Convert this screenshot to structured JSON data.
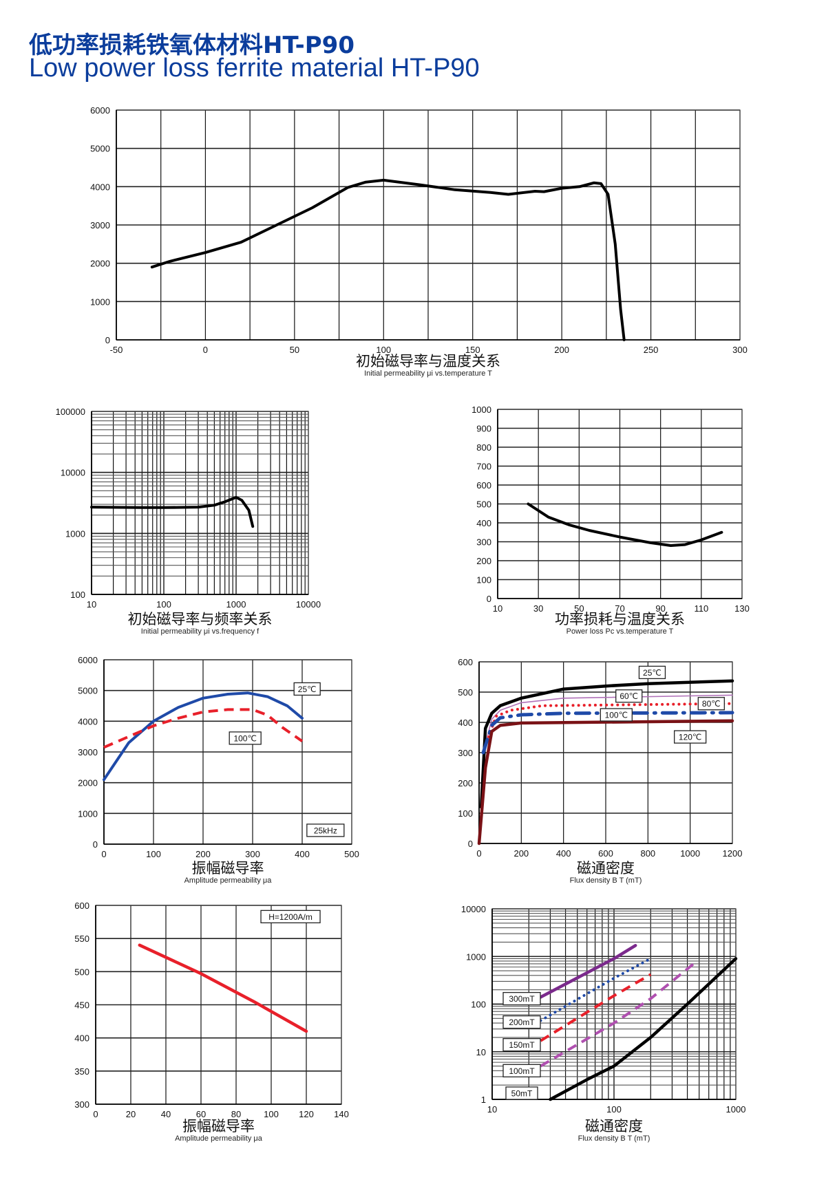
{
  "header": {
    "title_cn": "低功率损耗铁氧体材料HT-P90",
    "title_en": "Low power loss ferrite material HT-P90",
    "accent_color": "#0b3d9c"
  },
  "chart_data": [
    {
      "id": "mu-vs-temp",
      "type": "line",
      "xscale": "linear",
      "yscale": "linear",
      "xlim": [
        -50,
        300
      ],
      "ylim": [
        0,
        6000
      ],
      "xticks": [
        -50,
        0,
        50,
        100,
        150,
        200,
        250,
        300
      ],
      "yticks": [
        0,
        1000,
        2000,
        3000,
        4000,
        5000,
        6000
      ],
      "xgrid": [
        -25,
        0,
        25,
        50,
        75,
        100,
        125,
        150,
        175,
        200,
        225,
        250,
        275,
        300
      ],
      "ygrid": [
        1000,
        2000,
        3000,
        4000,
        5000,
        6000
      ],
      "title": "初始磁导率与温度关系",
      "subtitle": "Initial permeability μi vs.temperature T",
      "series": [
        {
          "name": "μi",
          "color": "#000000",
          "style": "solid",
          "x": [
            -30,
            -20,
            0,
            20,
            40,
            60,
            80,
            90,
            100,
            120,
            140,
            160,
            170,
            185,
            190,
            200,
            210,
            218,
            222,
            226,
            230,
            233,
            235
          ],
          "y": [
            1900,
            2050,
            2280,
            2550,
            3000,
            3450,
            3980,
            4120,
            4170,
            4050,
            3920,
            3850,
            3800,
            3880,
            3870,
            3960,
            4000,
            4100,
            4080,
            3800,
            2500,
            800,
            0
          ]
        }
      ],
      "labels": []
    },
    {
      "id": "mu-vs-freq",
      "type": "line",
      "xscale": "log",
      "yscale": "log",
      "xlim": [
        10,
        10000
      ],
      "ylim": [
        100,
        100000
      ],
      "xticks": [
        10,
        100,
        1000,
        10000
      ],
      "yticks": [
        100,
        1000,
        10000,
        100000
      ],
      "title": "初始磁导率与频率关系",
      "subtitle": "Initial permeability μi vs.frequency f",
      "series": [
        {
          "name": "μi",
          "color": "#000000",
          "style": "solid",
          "x": [
            10,
            50,
            100,
            300,
            500,
            700,
            1000,
            1200,
            1500,
            1700
          ],
          "y": [
            2700,
            2650,
            2650,
            2700,
            2900,
            3300,
            3900,
            3500,
            2400,
            1300
          ]
        }
      ],
      "labels": []
    },
    {
      "id": "pc-vs-temp",
      "type": "line",
      "xscale": "linear",
      "yscale": "linear",
      "xlim": [
        10,
        130
      ],
      "ylim": [
        0,
        1000
      ],
      "xticks": [
        10,
        30,
        50,
        70,
        90,
        110,
        130
      ],
      "yticks": [
        0,
        100,
        200,
        300,
        400,
        500,
        600,
        700,
        800,
        900,
        1000
      ],
      "xgrid": [
        30,
        50,
        70,
        90,
        110,
        130
      ],
      "ygrid": [
        100,
        200,
        300,
        400,
        500,
        600,
        700,
        800,
        900,
        1000
      ],
      "title": "功率损耗与温度关系",
      "subtitle": "Power loss Pc vs.temperature T",
      "series": [
        {
          "name": "Pc",
          "color": "#000000",
          "style": "solid",
          "x": [
            25,
            35,
            45,
            55,
            70,
            85,
            95,
            102,
            110,
            120
          ],
          "y": [
            500,
            430,
            390,
            360,
            325,
            295,
            280,
            285,
            310,
            350
          ]
        }
      ],
      "labels": []
    },
    {
      "id": "mua-vs-flux",
      "type": "line",
      "xscale": "linear",
      "yscale": "linear",
      "xlim": [
        0,
        500
      ],
      "ylim": [
        0,
        6000
      ],
      "xticks": [
        0,
        100,
        200,
        300,
        400,
        500
      ],
      "yticks": [
        0,
        1000,
        2000,
        3000,
        4000,
        5000,
        6000
      ],
      "xgrid": [
        100,
        200,
        300,
        400,
        500
      ],
      "ygrid": [
        1000,
        2000,
        3000,
        4000,
        5000,
        6000
      ],
      "title": "振幅磁导率",
      "subtitle": "Amplitude permeability μa",
      "series": [
        {
          "name": "25℃",
          "color": "#1f4aa8",
          "style": "solid",
          "x": [
            0,
            50,
            100,
            150,
            200,
            250,
            290,
            330,
            370,
            400
          ],
          "y": [
            2100,
            3300,
            4000,
            4450,
            4750,
            4880,
            4920,
            4800,
            4500,
            4100
          ]
        },
        {
          "name": "100℃",
          "color": "#e8202a",
          "style": "dashed",
          "x": [
            0,
            50,
            100,
            150,
            200,
            250,
            300,
            330,
            360,
            400
          ],
          "y": [
            3150,
            3500,
            3850,
            4100,
            4300,
            4380,
            4380,
            4200,
            3800,
            3350
          ]
        }
      ],
      "labels": [
        {
          "text": "25℃",
          "x": 410,
          "y": 5050
        },
        {
          "text": "100℃",
          "x": 285,
          "y": 3450
        },
        {
          "text": "25kHz",
          "x": 447,
          "y": 450
        }
      ]
    },
    {
      "id": "mua-vs-b",
      "type": "line",
      "xscale": "linear",
      "yscale": "linear",
      "xlim": [
        0,
        1200
      ],
      "ylim": [
        0,
        600
      ],
      "xticks": [
        0,
        200,
        400,
        600,
        800,
        1000,
        1200
      ],
      "yticks": [
        0,
        100,
        200,
        300,
        400,
        500,
        600
      ],
      "xgrid": [
        200,
        400,
        600,
        800,
        1000,
        1200
      ],
      "ygrid": [
        100,
        200,
        300,
        400,
        500,
        600
      ],
      "title": "磁通密度",
      "subtitle": "Flux density B T (mT)",
      "series": [
        {
          "name": "25℃",
          "color": "#000000",
          "style": "solid-thick",
          "x": [
            10,
            30,
            60,
            100,
            200,
            400,
            600,
            800,
            1200
          ],
          "y": [
            120,
            380,
            430,
            455,
            480,
            510,
            520,
            528,
            537
          ]
        },
        {
          "name": "60℃",
          "color": "#b070b8",
          "style": "thin",
          "x": [
            20,
            60,
            100,
            200,
            400,
            1200
          ],
          "y": [
            300,
            410,
            440,
            465,
            480,
            490
          ]
        },
        {
          "name": "80℃",
          "color": "#e8202a",
          "style": "dotted",
          "x": [
            20,
            80,
            150,
            300,
            1200
          ],
          "y": [
            300,
            420,
            440,
            455,
            462
          ]
        },
        {
          "name": "100℃",
          "color": "#1f4aa8",
          "style": "dashdot",
          "x": [
            20,
            60,
            100,
            200,
            400,
            1200
          ],
          "y": [
            300,
            390,
            415,
            425,
            430,
            432
          ]
        },
        {
          "name": "120℃",
          "color": "#7a1216",
          "style": "solid-thick",
          "x": [
            0,
            30,
            60,
            100,
            200,
            1200
          ],
          "y": [
            0,
            250,
            370,
            390,
            398,
            405
          ]
        }
      ],
      "labels": [
        {
          "text": "25℃",
          "x": 820,
          "y": 565
        },
        {
          "text": "60℃",
          "x": 710,
          "y": 487
        },
        {
          "text": "80℃",
          "x": 1100,
          "y": 462
        },
        {
          "text": "100℃",
          "x": 650,
          "y": 425
        },
        {
          "text": "120℃",
          "x": 1000,
          "y": 352
        }
      ]
    },
    {
      "id": "mua-vs-temp",
      "type": "line",
      "xscale": "linear",
      "yscale": "linear",
      "xlim": [
        0,
        140
      ],
      "ylim": [
        300,
        600
      ],
      "xticks": [
        0,
        20,
        40,
        60,
        80,
        100,
        120,
        140
      ],
      "yticks": [
        300,
        350,
        400,
        450,
        500,
        550,
        600
      ],
      "xgrid": [
        20,
        40,
        60,
        80,
        100,
        120,
        140
      ],
      "ygrid": [
        350,
        400,
        450,
        500,
        550,
        600
      ],
      "title": "振幅磁导率",
      "subtitle": "Amplitude permeability μa",
      "series": [
        {
          "name": "μa",
          "color": "#e8202a",
          "style": "solid-thick",
          "x": [
            25,
            60,
            90,
            120
          ],
          "y": [
            540,
            497,
            455,
            410
          ]
        }
      ],
      "labels": [
        {
          "text": "H=1200A/m",
          "x": 111,
          "y": 583
        }
      ]
    },
    {
      "id": "pc-vs-b",
      "type": "line",
      "xscale": "log",
      "yscale": "log",
      "xlim": [
        10,
        1000
      ],
      "ylim": [
        1,
        10000
      ],
      "xticks": [
        10,
        100,
        1000
      ],
      "yticks": [
        1,
        10,
        100,
        1000,
        10000
      ],
      "title": "磁通密度",
      "subtitle": "Flux density B T (mT)",
      "series": [
        {
          "name": "300mT",
          "color": "#7b2a8c",
          "style": "solid-thick",
          "x": [
            25,
            100,
            150
          ],
          "y": [
            140,
            900,
            1700
          ]
        },
        {
          "name": "200mT",
          "color": "#1f4aa8",
          "style": "dotted",
          "x": [
            25,
            100,
            200
          ],
          "y": [
            45,
            350,
            900
          ]
        },
        {
          "name": "150mT",
          "color": "#e8202a",
          "style": "dashed",
          "x": [
            25,
            100,
            200
          ],
          "y": [
            17,
            150,
            420
          ]
        },
        {
          "name": "100mT",
          "color": "#b050b0",
          "style": "dashed",
          "x": [
            25,
            100,
            200,
            450
          ],
          "y": [
            5,
            40,
            130,
            700
          ]
        },
        {
          "name": "50mT",
          "color": "#000000",
          "style": "solid-thick",
          "x": [
            30,
            60,
            100,
            200,
            400,
            1000
          ],
          "y": [
            1,
            2.6,
            5,
            20,
            100,
            900
          ]
        }
      ],
      "labels": [
        {
          "text": "300mT",
          "x": 17.5,
          "y": 130
        },
        {
          "text": "200mT",
          "x": 17.5,
          "y": 42
        },
        {
          "text": "150mT",
          "x": 17.5,
          "y": 14
        },
        {
          "text": "100mT",
          "x": 17.5,
          "y": 4
        },
        {
          "text": "50mT",
          "x": 17.5,
          "y": 1.35
        }
      ]
    }
  ]
}
